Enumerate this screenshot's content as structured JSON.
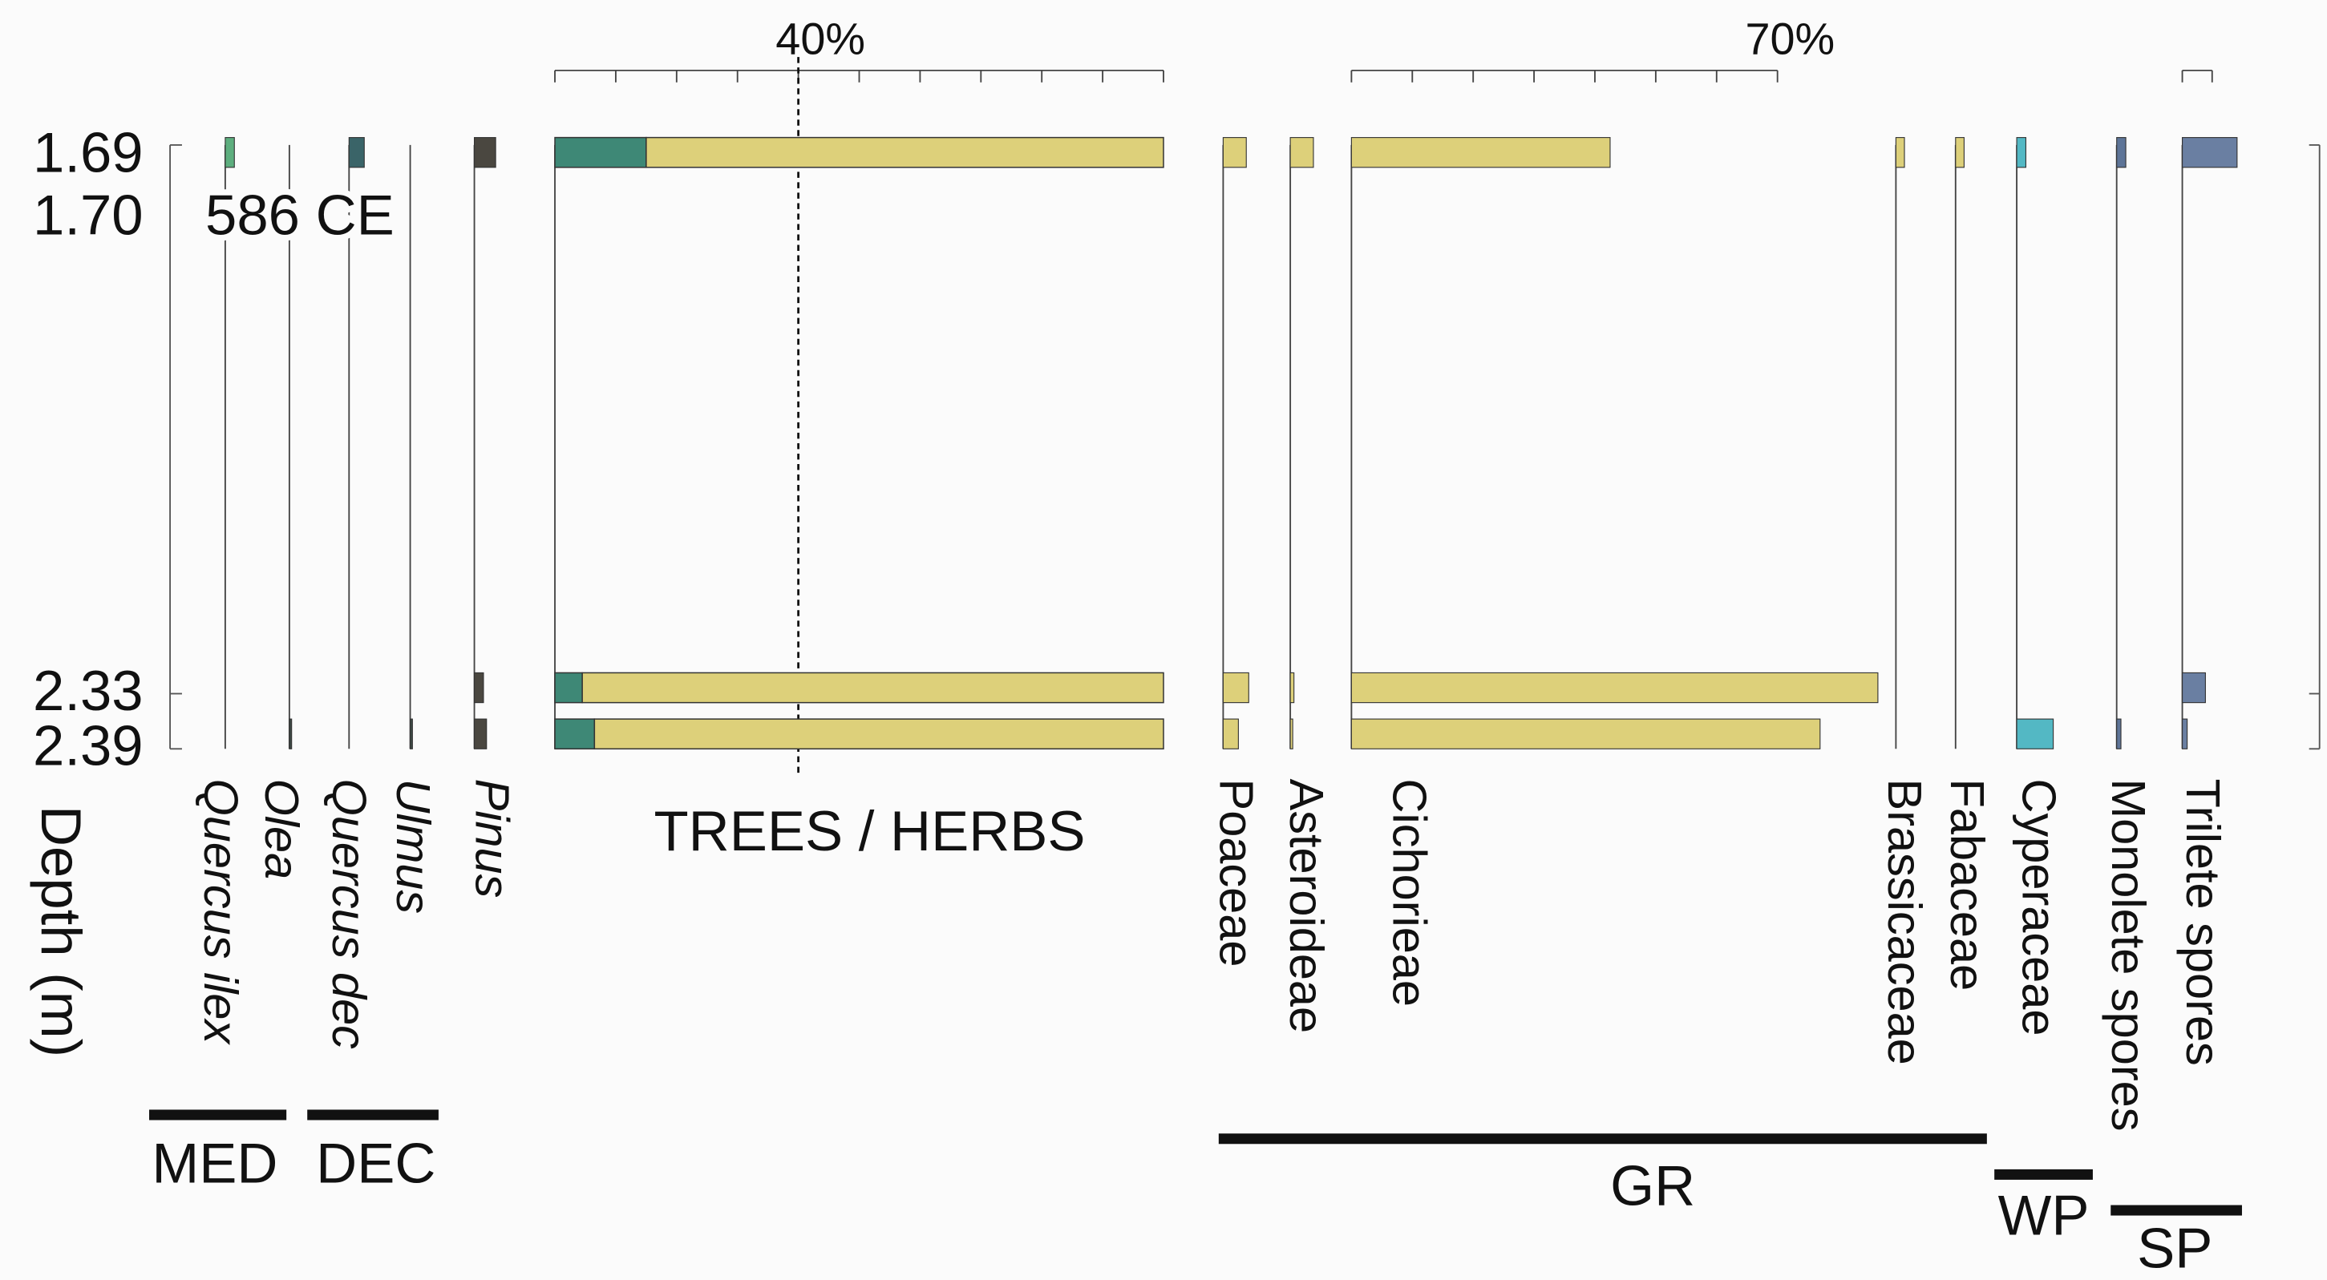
{
  "chart_data": {
    "type": "bar",
    "ylabel": "Depth (m)",
    "y_ticks": [
      "1.69",
      "1.70",
      "2.33",
      "2.39"
    ],
    "depths": [
      1.69,
      2.33,
      2.39
    ],
    "annotation": "586 CE",
    "scale_labels": {
      "trees_herbs": "40%",
      "cichorieae": "70%"
    },
    "trees_herbs": {
      "label": "TREES / HERBS",
      "reference_line": 40,
      "trees": [
        15,
        4.5,
        6.5
      ],
      "herbs": [
        85,
        95.5,
        93.5
      ],
      "colors": {
        "trees": "#3e8876",
        "herbs": "#ddd07a"
      }
    },
    "taxa": [
      {
        "name": "Quercus ilex",
        "italic": true,
        "color": "#5dae7e",
        "values": [
          1.5,
          0,
          0
        ]
      },
      {
        "name": "Olea",
        "italic": true,
        "color": "#3e4a45",
        "values": [
          0,
          0,
          0.2
        ]
      },
      {
        "name": "Quercus dec",
        "italic": true,
        "color": "#3a6468",
        "values": [
          2.5,
          0,
          0
        ]
      },
      {
        "name": "Ulmus",
        "italic": true,
        "color": "#3e4a45",
        "values": [
          0,
          0,
          0.2
        ]
      },
      {
        "name": "Pinus",
        "italic": true,
        "color": "#4a4740",
        "values": [
          3.5,
          1.5,
          2
        ]
      },
      {
        "name": "Poaceae",
        "italic": false,
        "color": "#ddd07a",
        "values": [
          3.8,
          4.2,
          2.5
        ]
      },
      {
        "name": "Asteroideae",
        "italic": false,
        "color": "#ddd07a",
        "values": [
          3.8,
          0.6,
          0.4
        ]
      },
      {
        "name": "Cichorieae",
        "italic": false,
        "color": "#ddd07a",
        "values": [
          42.5,
          86.5,
          77
        ]
      },
      {
        "name": "Brassicaceae",
        "italic": false,
        "color": "#ddd07a",
        "values": [
          1.4,
          0,
          0
        ]
      },
      {
        "name": "Fabaceae",
        "italic": false,
        "color": "#ddd07a",
        "values": [
          1.4,
          0,
          0
        ]
      },
      {
        "name": "Cyperaceae",
        "italic": false,
        "color": "#53b8c4",
        "values": [
          1.5,
          0,
          6
        ]
      },
      {
        "name": "Monolete spores",
        "italic": false,
        "color": "#5e7598",
        "values": [
          1.5,
          0,
          0.7
        ]
      },
      {
        "name": "Trilete spores",
        "italic": false,
        "color": "#6a7fa2",
        "values": [
          9,
          3.8,
          0.8
        ]
      }
    ],
    "groups": [
      {
        "label": "MED"
      },
      {
        "label": "DEC"
      },
      {
        "label": "GR"
      },
      {
        "label": "WP"
      },
      {
        "label": "SP"
      }
    ]
  }
}
